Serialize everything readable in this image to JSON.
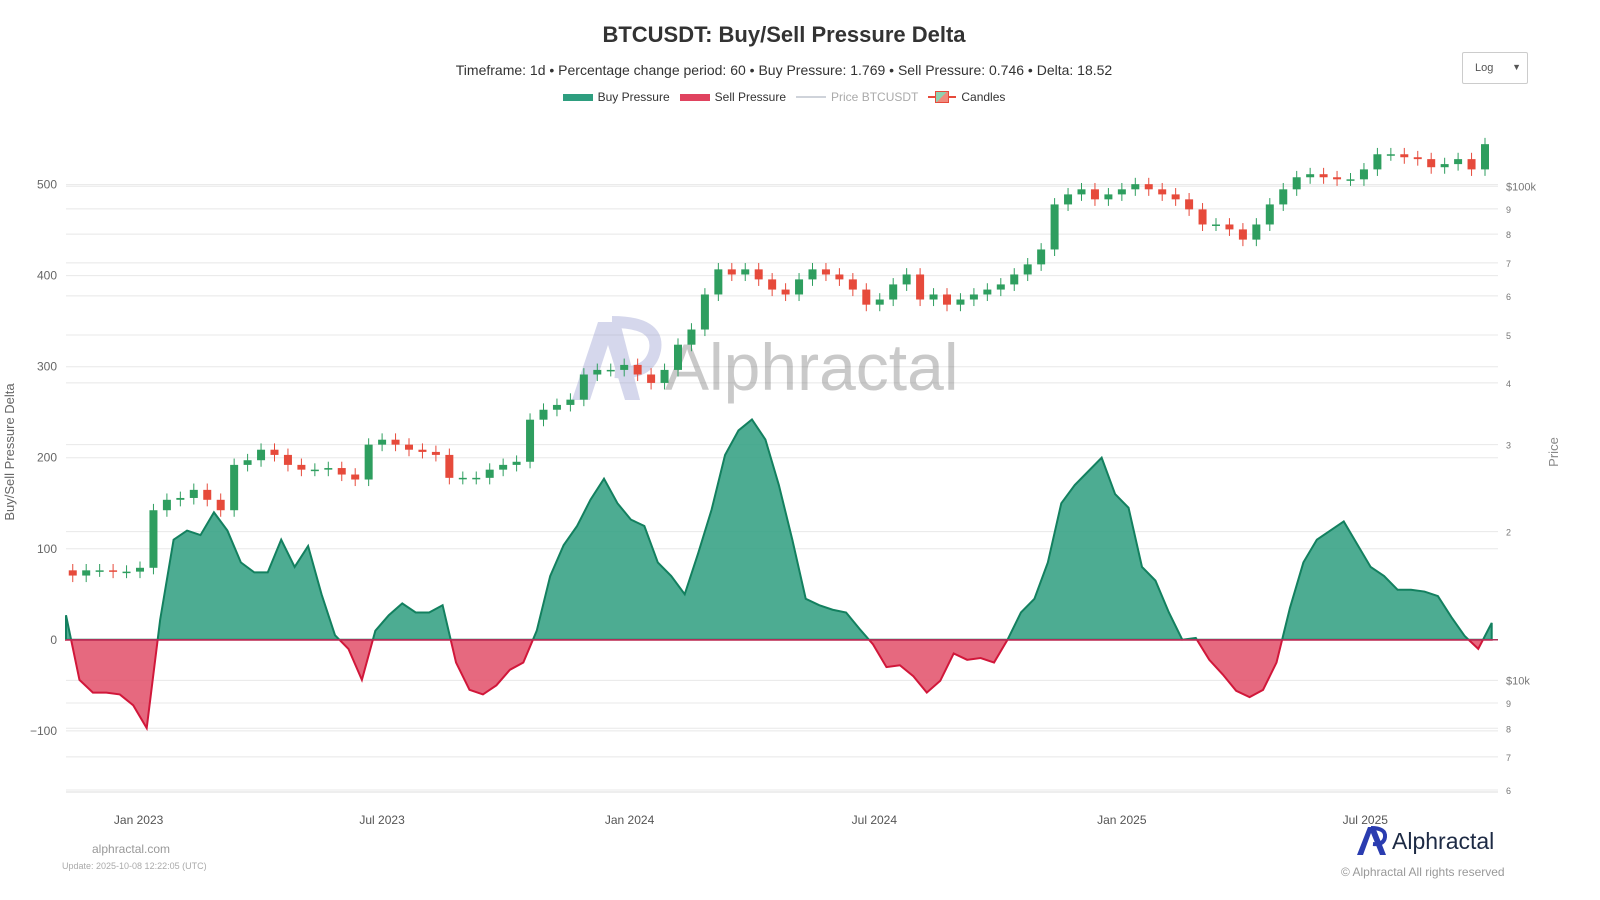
{
  "header": {
    "title": "BTCUSDT: Buy/Sell Pressure Delta",
    "subtitle": "Timeframe: 1d  •  Percentage change period: 60  •  Buy Pressure: 1.769 • Sell Pressure: 0.746 • Delta: 18.52"
  },
  "legend": [
    {
      "label": "Buy Pressure",
      "color": "#2e9e7f"
    },
    {
      "label": "Sell Pressure",
      "color": "#e0435f"
    },
    {
      "label": "Price BTCUSDT",
      "color": "#cfd3da"
    },
    {
      "label": "Candles",
      "color": "#e64a3b"
    }
  ],
  "scale_select": {
    "value": "Log",
    "icon": "caret-down-icon"
  },
  "watermark": "Alphractal",
  "footer": {
    "site": "alphractal.com",
    "update": "Update: 2025-10-08 12:22:05 (UTC)",
    "brand": "Alphractal",
    "copyright": "© Alphractal All rights reserved"
  },
  "chart_data": {
    "type": "area",
    "ylabel": "Buy/Sell Pressure Delta",
    "y2label": "Price",
    "ylim": [
      -165,
      560
    ],
    "y2lim": [
      6000,
      130000
    ],
    "y2scale": "log",
    "grid": true,
    "legend_position": "top",
    "yticks": [
      {
        "v": 500,
        "l": "500"
      },
      {
        "v": 400,
        "l": "400"
      },
      {
        "v": 300,
        "l": "300"
      },
      {
        "v": 200,
        "l": "200"
      },
      {
        "v": 100,
        "l": "100"
      },
      {
        "v": 0,
        "l": "0"
      },
      {
        "v": -100,
        "l": "−100"
      }
    ],
    "y2ticks": [
      {
        "v": 100000,
        "l": "$100k"
      },
      {
        "v": 90000,
        "l": "9"
      },
      {
        "v": 80000,
        "l": "8"
      },
      {
        "v": 70000,
        "l": "7"
      },
      {
        "v": 60000,
        "l": "6"
      },
      {
        "v": 50000,
        "l": "5"
      },
      {
        "v": 40000,
        "l": "4"
      },
      {
        "v": 30000,
        "l": "3"
      },
      {
        "v": 20000,
        "l": "2"
      },
      {
        "v": 10000,
        "l": "$10k"
      },
      {
        "v": 9000,
        "l": "9"
      },
      {
        "v": 8000,
        "l": "8"
      },
      {
        "v": 7000,
        "l": "7"
      },
      {
        "v": 6000,
        "l": "6"
      }
    ],
    "xticks": [
      {
        "d": "2023-01-01",
        "l": "Jan 2023"
      },
      {
        "d": "2023-07-01",
        "l": "Jul 2023"
      },
      {
        "d": "2024-01-01",
        "l": "Jan 2024"
      },
      {
        "d": "2024-07-01",
        "l": "Jul 2024"
      },
      {
        "d": "2025-01-01",
        "l": "Jan 2025"
      },
      {
        "d": "2025-07-01",
        "l": "Jul 2025"
      }
    ],
    "x_start": "2022-11-08",
    "interval_days": 10,
    "delta": [
      27,
      -44,
      -58,
      -58,
      -60,
      -72,
      -97,
      22,
      110,
      120,
      115,
      140,
      120,
      85,
      74,
      74,
      110,
      80,
      103,
      50,
      5,
      -10,
      -44,
      10,
      27,
      40,
      30,
      30,
      38,
      -25,
      -55,
      -60,
      -50,
      -33,
      -25,
      10,
      70,
      104,
      125,
      154,
      177,
      150,
      132,
      125,
      85,
      70,
      50,
      95,
      143,
      203,
      230,
      242,
      220,
      170,
      110,
      45,
      38,
      33,
      30,
      12,
      -5,
      -30,
      -28,
      -40,
      -58,
      -45,
      -15,
      -22,
      -20,
      -25,
      0,
      30,
      45,
      85,
      150,
      170,
      185,
      200,
      160,
      145,
      80,
      65,
      30,
      0,
      2,
      -22,
      -38,
      -56,
      -63,
      -55,
      -25,
      35,
      85,
      110,
      120,
      130,
      105,
      80,
      70,
      55,
      55,
      53,
      48,
      25,
      4,
      -10,
      18.52
    ],
    "price": [
      16700,
      16300,
      16700,
      16700,
      16600,
      16600,
      16900,
      22100,
      23200,
      23400,
      24300,
      23200,
      22100,
      27300,
      27900,
      29300,
      28600,
      27300,
      26700,
      26700,
      26900,
      26100,
      25500,
      30000,
      30700,
      30000,
      29300,
      29000,
      28600,
      25700,
      25700,
      25700,
      26700,
      27300,
      27700,
      33700,
      35300,
      36100,
      37000,
      41600,
      42500,
      42500,
      43500,
      41600,
      40000,
      42500,
      47800,
      51300,
      60400,
      67900,
      66300,
      67900,
      64800,
      61800,
      60400,
      64800,
      67900,
      66300,
      64800,
      61800,
      57600,
      59000,
      63300,
      66300,
      59000,
      60400,
      57600,
      59000,
      60400,
      61800,
      63300,
      66300,
      69500,
      74500,
      91900,
      96300,
      98600,
      94100,
      96300,
      98600,
      101000,
      98600,
      96300,
      94100,
      89800,
      83700,
      83700,
      81800,
      78000,
      83700,
      91900,
      98600,
      104300,
      105800,
      104300,
      103300,
      103300,
      108200,
      116100,
      116100,
      114500,
      113500,
      109300,
      110900,
      113500,
      108200,
      121700
    ]
  }
}
